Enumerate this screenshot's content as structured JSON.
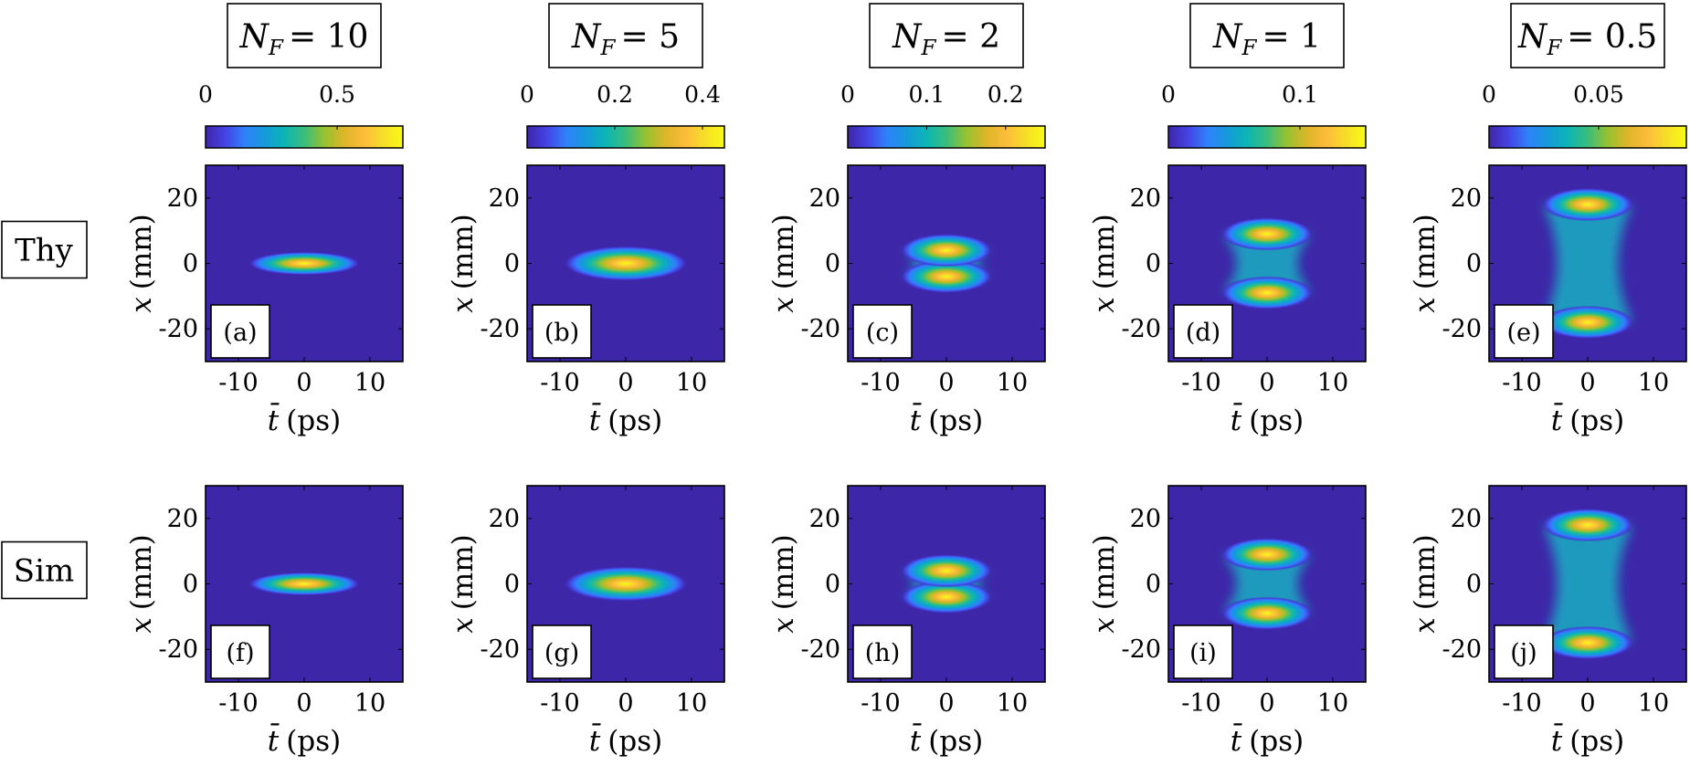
{
  "figure": {
    "row_labels": [
      "Thy",
      "Sim"
    ],
    "columns": [
      {
        "title_sym": "N",
        "title_sub": "F",
        "title_eq": "= 10",
        "colorbar": {
          "min": 0,
          "max": 0.75,
          "ticks": [
            0,
            0.5
          ],
          "tick_labels": [
            "0",
            "0.5"
          ]
        }
      },
      {
        "title_sym": "N",
        "title_sub": "F",
        "title_eq": "= 5",
        "colorbar": {
          "min": 0,
          "max": 0.45,
          "ticks": [
            0,
            0.2,
            0.4
          ],
          "tick_labels": [
            "0",
            "0.2",
            "0.4"
          ]
        }
      },
      {
        "title_sym": "N",
        "title_sub": "F",
        "title_eq": "= 2",
        "colorbar": {
          "min": 0,
          "max": 0.25,
          "ticks": [
            0,
            0.1,
            0.2
          ],
          "tick_labels": [
            "0",
            "0.1",
            "0.2"
          ]
        }
      },
      {
        "title_sym": "N",
        "title_sub": "F",
        "title_eq": "= 1",
        "colorbar": {
          "min": 0,
          "max": 0.15,
          "ticks": [
            0,
            0.1
          ],
          "tick_labels": [
            "0",
            "0.1"
          ]
        }
      },
      {
        "title_sym": "N",
        "title_sub": "F",
        "title_eq": "= 0.5",
        "colorbar": {
          "min": 0,
          "max": 0.09,
          "ticks": [
            0,
            0.05
          ],
          "tick_labels": [
            "0",
            "0.05"
          ]
        }
      }
    ],
    "panel_labels": [
      [
        "(a)",
        "(b)",
        "(c)",
        "(d)",
        "(e)"
      ],
      [
        "(f)",
        "(g)",
        "(h)",
        "(i)",
        "(j)"
      ]
    ],
    "xlabel_sym": "t̄",
    "xlabel_unit": "(ps)",
    "ylabel_sym": "x",
    "ylabel_unit": "(mm)",
    "colormap": [
      "#3e26a8",
      "#4543e5",
      "#2f82fb",
      "#149bd9",
      "#0cb5b5",
      "#3abe7c",
      "#95c230",
      "#dbb628",
      "#fdbb3b",
      "#f6de27",
      "#f9fb15"
    ]
  },
  "chart_data": {
    "type": "heatmap",
    "xlabel": "t̄ (ps)",
    "ylabel": "x (mm)",
    "xlim": [
      -15,
      15
    ],
    "ylim": [
      30,
      -30
    ],
    "xticks": [
      -10,
      0,
      10
    ],
    "yticks": [
      -20,
      0,
      20
    ],
    "x_centre_ps": 0,
    "time_halfwidth_ps": 6,
    "rows": [
      "Thy",
      "Sim"
    ],
    "panels": [
      {
        "NF": 10,
        "lobe_separation_mm": 0,
        "peak_value": 0.75
      },
      {
        "NF": 5,
        "lobe_separation_mm": 0,
        "peak_value": 0.45
      },
      {
        "NF": 2,
        "lobe_separation_mm": 8,
        "peak_value": 0.25
      },
      {
        "NF": 1,
        "lobe_separation_mm": 18,
        "peak_value": 0.15
      },
      {
        "NF": 0.5,
        "lobe_separation_mm": 36,
        "peak_value": 0.09
      }
    ]
  }
}
